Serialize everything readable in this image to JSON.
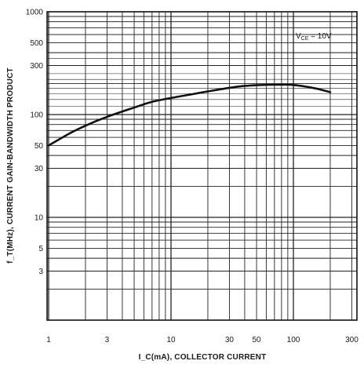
{
  "chart_data": {
    "type": "line",
    "title": "",
    "xlabel": "I_C(mA), COLLECTOR CURRENT",
    "ylabel": "f_T(MHz), CURRENT GAIN-BANDWIDTH PRODUCT",
    "x_scale": "log",
    "y_scale": "log",
    "xlim": [
      0.8,
      400
    ],
    "ylim": [
      1,
      1000
    ],
    "x_ticks": [
      1,
      3,
      10,
      30,
      50,
      100,
      300
    ],
    "x_tick_labels": [
      "1",
      "3",
      "10",
      "30",
      "50",
      "100",
      "300"
    ],
    "y_ticks": [
      1000,
      500,
      300,
      100,
      50,
      30,
      10,
      5,
      3
    ],
    "y_tick_labels": [
      "1000",
      "500",
      "300",
      "100",
      "50",
      "30",
      "10",
      "5",
      "3"
    ],
    "grid": true,
    "annotation": {
      "text_main": "V",
      "text_sub": "CE",
      "text_rest": " = 10V",
      "placement": "top-right"
    },
    "series": [
      {
        "x": [
          1,
          1.5,
          2,
          3,
          5,
          7,
          10,
          15,
          20,
          30,
          40,
          50,
          70,
          100,
          150,
          200
        ],
        "y": [
          50,
          66,
          78,
          95,
          117,
          133,
          145,
          158,
          168,
          182,
          190,
          193,
          195,
          194,
          180,
          165
        ]
      }
    ]
  },
  "colors": {
    "line": "#111111",
    "grid": "#222222",
    "background": "#ffffff"
  }
}
